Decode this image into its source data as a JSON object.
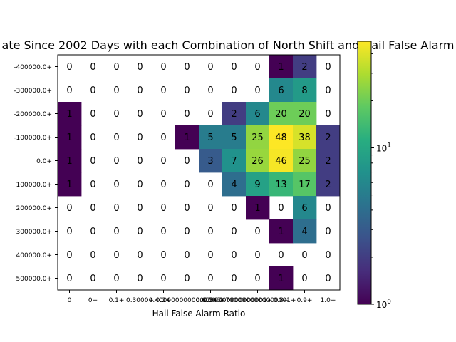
{
  "chart_data": {
    "type": "heatmap",
    "title": "ate Since 2002 Days with each Combination of North Shift and Hail False Alarm",
    "xlabel": "Hail False Alarm Ratio",
    "ylabel": "",
    "x_tick_labels": [
      "0",
      "0+",
      "0.1+",
      "0.3000+",
      "0.2+",
      "0.4000000000000006+",
      "0.5+",
      "0.6000000000000001+",
      "0.7000000000000001+",
      "0.8+",
      "0.9+",
      "1.0+"
    ],
    "y_tick_labels": [
      "-400000.0+",
      "-300000.0+",
      "-200000.0+",
      "-100000.0+",
      "0.0+",
      "100000.0+",
      "200000.0+",
      "300000.0+",
      "400000.0+",
      "500000.0+"
    ],
    "values": [
      [
        0,
        0,
        0,
        0,
        0,
        0,
        0,
        0,
        0,
        1,
        2,
        0
      ],
      [
        0,
        0,
        0,
        0,
        0,
        0,
        0,
        0,
        0,
        6,
        8,
        0
      ],
      [
        1,
        0,
        0,
        0,
        0,
        0,
        0,
        2,
        6,
        20,
        20,
        0
      ],
      [
        1,
        0,
        0,
        0,
        0,
        1,
        5,
        5,
        25,
        48,
        38,
        2
      ],
      [
        1,
        0,
        0,
        0,
        0,
        0,
        3,
        7,
        26,
        46,
        25,
        2
      ],
      [
        1,
        0,
        0,
        0,
        0,
        0,
        0,
        4,
        9,
        13,
        17,
        2
      ],
      [
        0,
        0,
        0,
        0,
        0,
        0,
        0,
        0,
        1,
        0,
        6,
        0
      ],
      [
        0,
        0,
        0,
        0,
        0,
        0,
        0,
        0,
        0,
        1,
        4,
        0
      ],
      [
        0,
        0,
        0,
        0,
        0,
        0,
        0,
        0,
        0,
        0,
        0,
        0
      ],
      [
        0,
        0,
        0,
        0,
        0,
        0,
        0,
        0,
        0,
        1,
        0,
        0
      ]
    ],
    "colormap": "viridis",
    "color_scale": "log",
    "color_range": [
      1,
      48
    ],
    "zero_cells": "blank",
    "colorbar_ticks": [
      {
        "value": 1,
        "label": "10^0"
      },
      {
        "value": 10,
        "label": "10^1"
      }
    ]
  }
}
